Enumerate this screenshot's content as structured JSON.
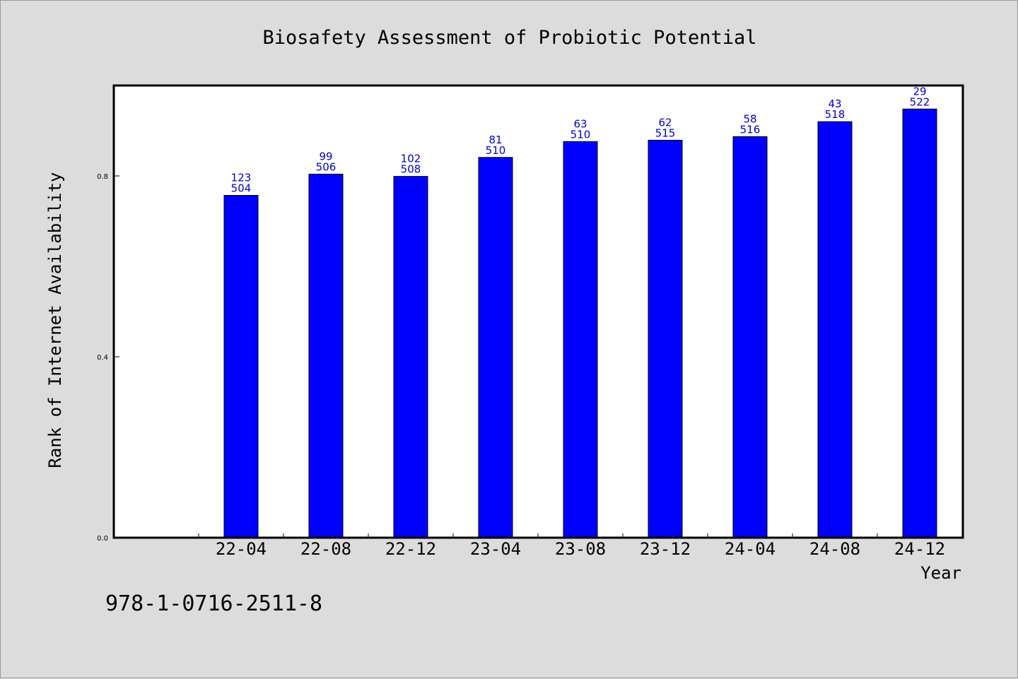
{
  "chart_data": {
    "type": "bar",
    "title": "Biosafety Assessment of Probiotic Potential",
    "xlabel": "Year",
    "ylabel": "Rank of Internet Availability",
    "categories": [
      "22-04",
      "22-08",
      "22-12",
      "23-04",
      "23-08",
      "23-12",
      "24-04",
      "24-08",
      "24-12"
    ],
    "values": [
      0.757,
      0.804,
      0.799,
      0.841,
      0.876,
      0.879,
      0.887,
      0.92,
      0.948
    ],
    "labels_top": [
      "123",
      "99",
      "102",
      "81",
      "63",
      "62",
      "58",
      "43",
      "29"
    ],
    "labels_bottom": [
      "504",
      "506",
      "508",
      "510",
      "510",
      "515",
      "516",
      "518",
      "522"
    ],
    "ylim": [
      0,
      1.0
    ],
    "yticks": [
      0.0,
      0.4,
      0.8
    ],
    "ytick_labels": [
      "0.0",
      "0.4",
      "0.8"
    ],
    "grid": false,
    "bar_color": "#0000ff",
    "label_color": "#0000cc"
  },
  "footnote": "978-1-0716-2511-8"
}
